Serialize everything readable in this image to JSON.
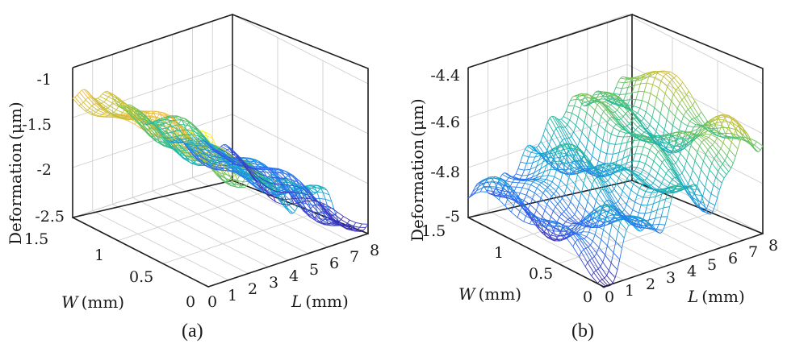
{
  "chart_data": [
    {
      "panel": "(a)",
      "type": "surface-3d-mesh",
      "x_axis": {
        "label_symbol": "L",
        "label_unit": "(mm)",
        "ticks": [
          "0",
          "1",
          "2",
          "3",
          "4",
          "5",
          "6",
          "7",
          "8"
        ],
        "range": [
          0,
          8
        ]
      },
      "y_axis": {
        "label_symbol": "W",
        "label_unit": "(mm)",
        "ticks": [
          "0",
          "0.5",
          "1",
          "1.5"
        ],
        "range": [
          0,
          1.5
        ]
      },
      "z_axis": {
        "label": "Deformation",
        "label_unit": "(μm)",
        "ticks": [
          "-2.5",
          "-2",
          "-1.5",
          "-1"
        ],
        "range": [
          -2.5,
          -1
        ]
      },
      "surface_trend": {
        "z_at_L0": -1.2,
        "z_at_L8": -2.45,
        "ripple_amplitude": 0.12
      },
      "colormap": "parula",
      "grid": true
    },
    {
      "panel": "(b)",
      "type": "surface-3d-mesh",
      "x_axis": {
        "label_symbol": "L",
        "label_unit": "(mm)",
        "ticks": [
          "0",
          "1",
          "2",
          "3",
          "4",
          "5",
          "6",
          "7",
          "8"
        ],
        "range": [
          0,
          8
        ]
      },
      "y_axis": {
        "label_symbol": "W",
        "label_unit": "(mm)",
        "ticks": [
          "0",
          "0.5",
          "1",
          "1.5"
        ],
        "range": [
          0,
          1.5
        ]
      },
      "z_axis": {
        "label": "Deformation",
        "label_unit": "(μm)",
        "ticks": [
          "-5",
          "-4.8",
          "-4.6",
          "-4.4"
        ],
        "range": [
          -5,
          -4.4
        ]
      },
      "surface_trend": {
        "z_at_L0": -4.92,
        "z_at_L8": -4.62,
        "ripple_amplitude": 0.07
      },
      "colormap": "parula",
      "grid": true
    }
  ],
  "colors": {
    "parula": [
      "#3e26a8",
      "#2f6bf4",
      "#13a6d6",
      "#2dbd8f",
      "#a2c43b",
      "#f8ba3d",
      "#f9fb15"
    ],
    "frame": "#1e1e1e",
    "grid": "#cfcfcf"
  }
}
